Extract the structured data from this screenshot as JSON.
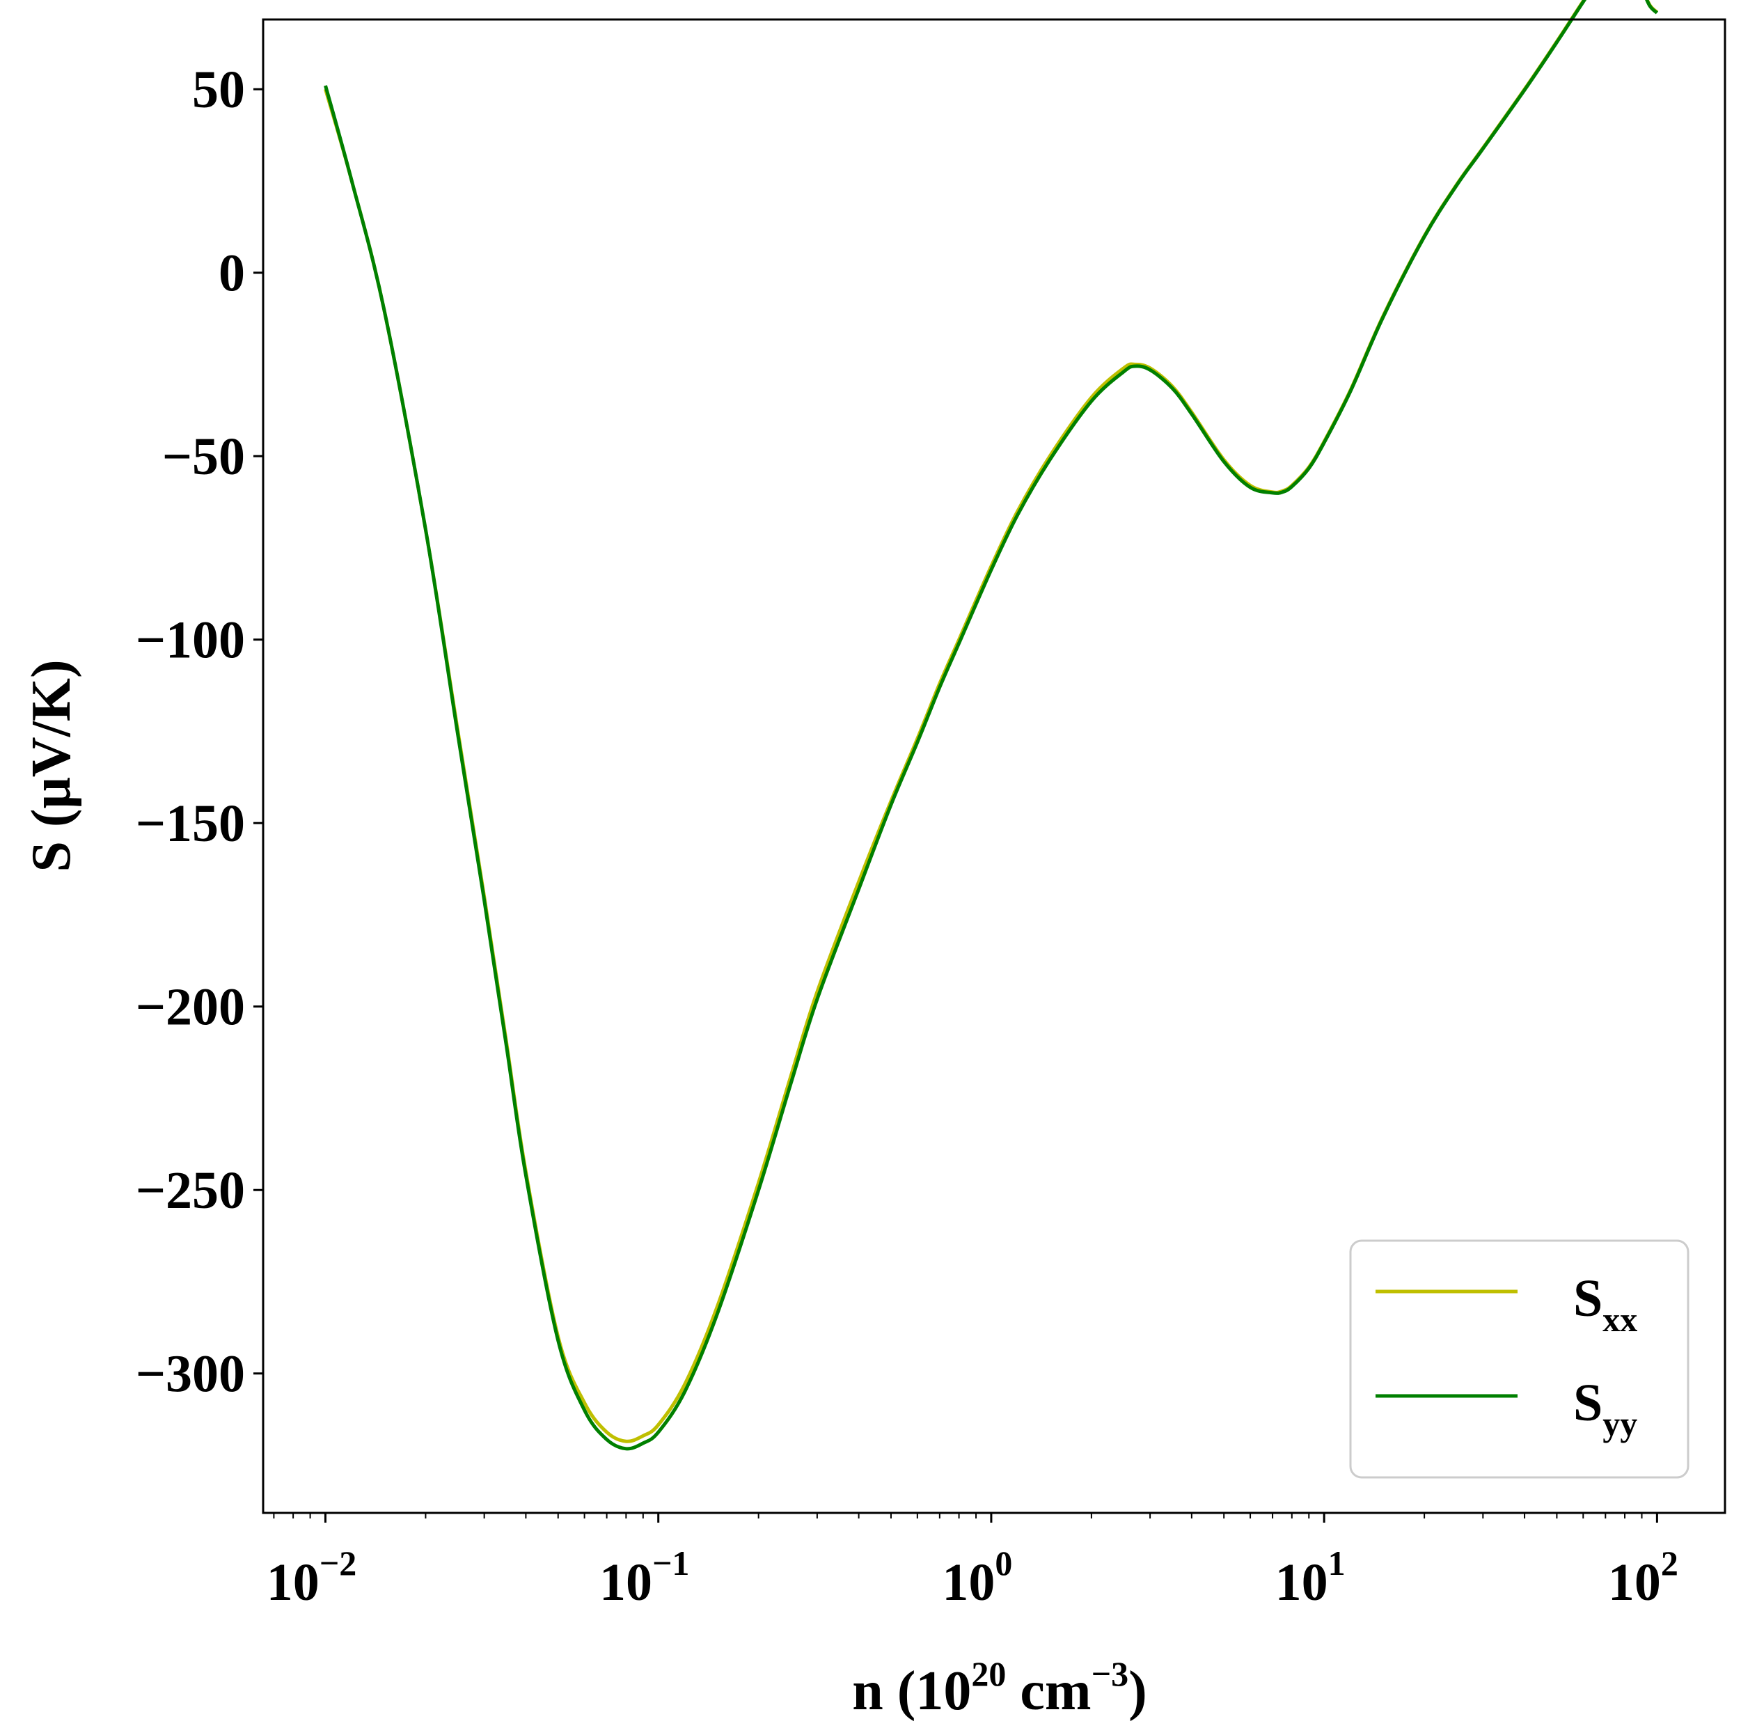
{
  "chart_data": {
    "type": "line",
    "xscale": "log",
    "xlim": [
      0.0065,
      160
    ],
    "ylim": [
      -338,
      69
    ],
    "grid": false,
    "legend_position": "lower-right",
    "xlabel": {
      "prefix": "n (10",
      "sup1": "20",
      "middle": " cm",
      "sup2": "−3",
      "suffix": ")"
    },
    "ylabel": "S (μV/K)",
    "x_ticks": [
      {
        "value": 0.01,
        "base": "10",
        "exp": "−2"
      },
      {
        "value": 0.1,
        "base": "10",
        "exp": "−1"
      },
      {
        "value": 1,
        "base": "10",
        "exp": "0"
      },
      {
        "value": 10,
        "base": "10",
        "exp": "1"
      },
      {
        "value": 100,
        "base": "10",
        "exp": "2"
      }
    ],
    "y_ticks": [
      {
        "value": 50,
        "label": "50"
      },
      {
        "value": 0,
        "label": "0"
      },
      {
        "value": -50,
        "label": "−50"
      },
      {
        "value": -100,
        "label": "−100"
      },
      {
        "value": -150,
        "label": "−150"
      },
      {
        "value": -200,
        "label": "−200"
      },
      {
        "value": -250,
        "label": "−250"
      },
      {
        "value": -300,
        "label": "−300"
      }
    ],
    "series": [
      {
        "name": "S",
        "subscript": "xx",
        "color": "#bfbf00",
        "x": [
          0.01,
          0.012,
          0.015,
          0.02,
          0.025,
          0.03,
          0.035,
          0.04,
          0.05,
          0.06,
          0.07,
          0.08,
          0.09,
          0.1,
          0.12,
          0.15,
          0.2,
          0.25,
          0.3,
          0.4,
          0.5,
          0.6,
          0.7,
          0.8,
          1.0,
          1.2,
          1.5,
          2.0,
          2.5,
          2.7,
          3.0,
          3.5,
          4.0,
          5.0,
          6.0,
          7.0,
          7.5,
          8.0,
          9.0,
          10.0,
          12.0,
          15.0,
          20.0,
          25.0,
          30.0,
          40.0,
          50.0,
          60.0,
          70.0,
          75.0,
          80.0,
          85.0,
          90.0,
          95.0,
          100.0
        ],
        "values": [
          50,
          25,
          -10,
          -70,
          -125,
          -170,
          -210,
          -245,
          -290,
          -308,
          -316,
          -318.5,
          -317,
          -314,
          -303,
          -282,
          -248,
          -219,
          -196,
          -166,
          -144,
          -127,
          -112,
          -100,
          -80,
          -65,
          -50,
          -34,
          -26,
          -25,
          -26,
          -31,
          -38,
          -51,
          -58,
          -59.8,
          -59.5,
          -58,
          -53,
          -46,
          -32,
          -12,
          10,
          24,
          34,
          50,
          63,
          74,
          83,
          87,
          88.5,
          85,
          78,
          73,
          71
        ]
      },
      {
        "name": "S",
        "subscript": "yy",
        "color": "#008000",
        "x": [
          0.01,
          0.012,
          0.015,
          0.02,
          0.025,
          0.03,
          0.035,
          0.04,
          0.05,
          0.06,
          0.07,
          0.08,
          0.09,
          0.1,
          0.12,
          0.15,
          0.2,
          0.25,
          0.3,
          0.4,
          0.5,
          0.6,
          0.7,
          0.8,
          1.0,
          1.2,
          1.5,
          2.0,
          2.5,
          2.7,
          3.0,
          3.5,
          4.0,
          5.0,
          6.0,
          7.0,
          7.5,
          8.0,
          9.0,
          10.0,
          12.0,
          15.0,
          20.0,
          25.0,
          30.0,
          40.0,
          50.0,
          60.0,
          70.0,
          75.0,
          80.0,
          85.0,
          90.0,
          95.0,
          100.0
        ],
        "values": [
          51,
          25,
          -10,
          -70,
          -126,
          -171,
          -211,
          -246,
          -291,
          -310,
          -318,
          -320.5,
          -319,
          -316,
          -305,
          -284,
          -250,
          -221,
          -198,
          -168,
          -145,
          -128,
          -113,
          -101,
          -81,
          -66,
          -51,
          -35,
          -27,
          -25.5,
          -26.5,
          -31.5,
          -38.5,
          -51.5,
          -58.5,
          -60,
          -59.8,
          -58.3,
          -53.3,
          -46.3,
          -32.3,
          -12.3,
          9.8,
          23.8,
          33.8,
          49.8,
          62.8,
          73.8,
          82.8,
          86.8,
          88.3,
          84.8,
          77.8,
          72.8,
          70.8
        ]
      }
    ]
  }
}
